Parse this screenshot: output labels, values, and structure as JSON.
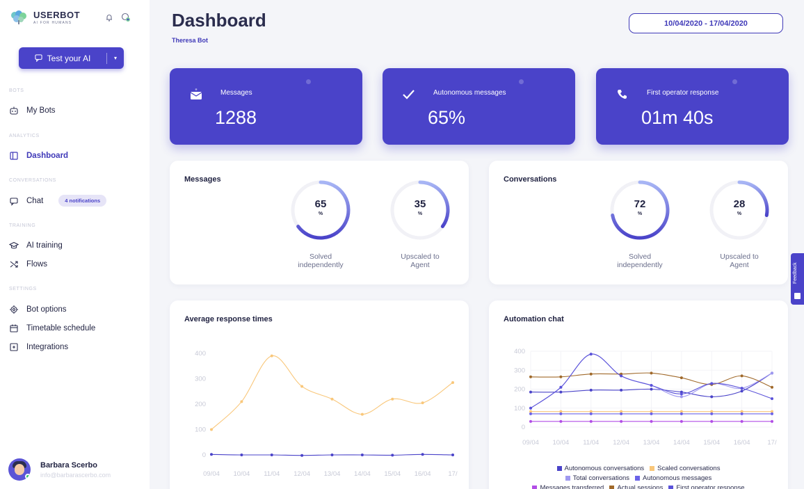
{
  "brand": {
    "name": "USERBOT",
    "tagline": "AI FOR HUMANS",
    "logo_icon": "brain-icon"
  },
  "header_icons": [
    "bell-icon",
    "palette-icon"
  ],
  "test_button": {
    "label": "Test your AI",
    "icon": "chat-icon",
    "caret": "▾"
  },
  "sidebar": {
    "sections": [
      {
        "title": "BOTS",
        "items": [
          {
            "label": "My Bots",
            "icon": "robot-icon"
          }
        ]
      },
      {
        "title": "ANALYTICS",
        "items": [
          {
            "label": "Dashboard",
            "icon": "dashboard-icon",
            "active": true
          }
        ]
      },
      {
        "title": "CONVERSATIONS",
        "items": [
          {
            "label": "Chat",
            "icon": "chat-icon",
            "badge": "4 notifications"
          }
        ]
      },
      {
        "title": "TRAINING",
        "items": [
          {
            "label": "AI training",
            "icon": "graduation-cap-icon"
          },
          {
            "label": "Flows",
            "icon": "shuffle-icon"
          }
        ]
      },
      {
        "title": "SETTINGS",
        "items": [
          {
            "label": "Bot options",
            "icon": "gear-icon"
          },
          {
            "label": "Timetable schedule",
            "icon": "calendar-icon"
          },
          {
            "label": "Integrations",
            "icon": "integrations-icon"
          }
        ]
      }
    ]
  },
  "user": {
    "name": "Barbara Scerbo",
    "email": "info@barbarascerbo.com"
  },
  "page": {
    "title": "Dashboard",
    "subtitle": "Theresa Bot",
    "date_range": "10/04/2020 - 17/04/2020"
  },
  "stats": [
    {
      "label": "Messages",
      "value": "1288",
      "icon": "envelope-icon"
    },
    {
      "label": "Autonomous messages",
      "value": "65%",
      "icon": "checkmark-icon"
    },
    {
      "label": "First operator response",
      "value": "01m 40s",
      "icon": "phone-icon"
    }
  ],
  "messages_panel": {
    "title": "Messages",
    "donuts": [
      {
        "value": "65",
        "unit": "%",
        "caption_1": "Solved",
        "caption_2": "independently",
        "percent": 65
      },
      {
        "value": "35",
        "unit": "%",
        "caption_1": "Upscaled to",
        "caption_2": "Agent",
        "percent": 35
      }
    ]
  },
  "conversations_panel": {
    "title": "Conversations",
    "donuts": [
      {
        "value": "72",
        "unit": "%",
        "caption_1": "Solved",
        "caption_2": "independently",
        "percent": 72
      },
      {
        "value": "28",
        "unit": "%",
        "caption_1": "Upscaled to",
        "caption_2": "Agent",
        "percent": 28
      }
    ]
  },
  "colors": {
    "accent": "#4a43c9",
    "orange": "#f9c77a",
    "brown": "#a0692a",
    "light_purple": "#9f99f0",
    "magenta": "#b24de6"
  },
  "feedback": {
    "label": "Feedback"
  },
  "chart_data": [
    {
      "type": "line",
      "title": "Average response times",
      "categories": [
        "09/04",
        "10/04",
        "11/04",
        "12/04",
        "13/04",
        "14/04",
        "15/04",
        "16/04",
        "17/"
      ],
      "ylim": [
        0,
        400
      ],
      "yticks": [
        0,
        100,
        200,
        300,
        400
      ],
      "series": [
        {
          "color": "#f9c77a",
          "values": [
            100,
            210,
            390,
            270,
            220,
            160,
            220,
            205,
            285
          ]
        },
        {
          "color": "#4a43c9",
          "values": [
            2,
            0,
            0,
            -2,
            0,
            0,
            -1,
            2,
            0
          ]
        }
      ]
    },
    {
      "type": "line",
      "title": "Automation chat",
      "categories": [
        "09/04",
        "10/04",
        "11/04",
        "12/04",
        "13/04",
        "14/04",
        "15/04",
        "16/04",
        "17/"
      ],
      "ylim": [
        0,
        400
      ],
      "yticks": [
        0,
        100,
        200,
        300,
        400
      ],
      "legend_rows": [
        [
          0,
          1
        ],
        [
          2,
          3
        ],
        [
          4,
          5,
          6
        ]
      ],
      "series": [
        {
          "name": "Autonomous conversations",
          "color": "#4a43c9",
          "values": [
            185,
            185,
            195,
            195,
            200,
            185,
            160,
            190,
            285
          ]
        },
        {
          "name": "Scaled conversations",
          "color": "#f9c77a",
          "values": [
            82,
            82,
            82,
            82,
            82,
            82,
            82,
            82,
            82
          ]
        },
        {
          "name": "Total conversations",
          "color": "#9f99f0",
          "values": [
            100,
            210,
            385,
            270,
            220,
            160,
            230,
            205,
            285
          ]
        },
        {
          "name": "Autonomous messages",
          "color": "#6b63e8",
          "values": [
            70,
            70,
            70,
            70,
            70,
            70,
            70,
            70,
            70
          ]
        },
        {
          "name": "Messages transferred",
          "color": "#b24de6",
          "values": [
            30,
            30,
            30,
            30,
            30,
            30,
            30,
            30,
            30
          ]
        },
        {
          "name": "Actual sessions",
          "color": "#a0692a",
          "values": [
            265,
            265,
            280,
            280,
            285,
            260,
            225,
            270,
            210
          ]
        },
        {
          "name": "First operator response",
          "color": "#5a52d9",
          "values": [
            100,
            210,
            385,
            270,
            220,
            175,
            230,
            205,
            150
          ]
        }
      ]
    }
  ]
}
